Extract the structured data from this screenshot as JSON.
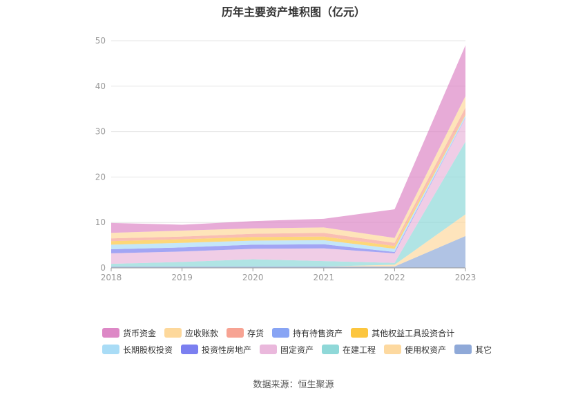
{
  "chart_data": {
    "type": "area",
    "stacked": true,
    "title": "历年主要资产堆积图（亿元）",
    "x": [
      "2018",
      "2019",
      "2020",
      "2021",
      "2022",
      "2023"
    ],
    "ylim": [
      0,
      50
    ],
    "yticks": [
      0,
      10,
      20,
      30,
      40,
      50
    ],
    "grid": true,
    "legend_position": "bottom",
    "series": [
      {
        "name": "其它",
        "color": "#8fa9d8",
        "values": [
          0.3,
          0.3,
          0.3,
          0.3,
          0.3,
          7.0
        ]
      },
      {
        "name": "使用权资产",
        "color": "#fdd9a0",
        "values": [
          0,
          0,
          0,
          0,
          0.4,
          4.8
        ]
      },
      {
        "name": "在建工程",
        "color": "#8fd8d8",
        "values": [
          0.6,
          1.0,
          1.6,
          1.2,
          0.4,
          16.0
        ]
      },
      {
        "name": "固定资产",
        "color": "#eab8dc",
        "values": [
          2.3,
          2.3,
          2.3,
          2.8,
          2.1,
          5.2
        ]
      },
      {
        "name": "投资性房地产",
        "color": "#7b7ff0",
        "values": [
          0.9,
          0.9,
          0.9,
          0.9,
          0.3,
          0.1
        ]
      },
      {
        "name": "长期股权投资",
        "color": "#a9dcf6",
        "values": [
          1.0,
          1.0,
          0.9,
          0.9,
          0.7,
          0.5
        ]
      },
      {
        "name": "其他权益工具投资合计",
        "color": "#fcc63f",
        "values": [
          0.8,
          0.8,
          0.8,
          0.8,
          0.6,
          0.2
        ]
      },
      {
        "name": "持有待售资产",
        "color": "#88a4f4",
        "values": [
          0,
          0,
          0,
          0,
          0,
          0
        ]
      },
      {
        "name": "存货",
        "color": "#f7a393",
        "values": [
          0.6,
          0.6,
          0.7,
          0.8,
          0.7,
          1.5
        ]
      },
      {
        "name": "应收账款",
        "color": "#fdd89b",
        "values": [
          1.2,
          1.3,
          1.2,
          1.2,
          1.1,
          2.5
        ]
      },
      {
        "name": "货币资金",
        "color": "#dd88c6",
        "values": [
          2.2,
          1.3,
          1.6,
          1.9,
          6.3,
          11.2
        ]
      }
    ],
    "legend_order": [
      "货币资金",
      "应收账款",
      "存货",
      "持有待售资产",
      "其他权益工具投资合计",
      "长期股权投资",
      "投资性房地产",
      "固定资产",
      "在建工程",
      "使用权资产",
      "其它"
    ]
  },
  "source": "数据来源：恒生聚源"
}
